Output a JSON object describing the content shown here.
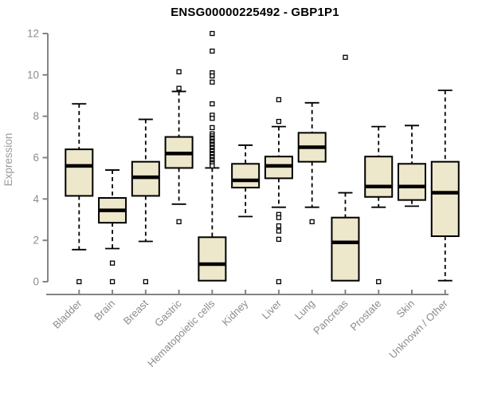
{
  "chart_data": {
    "type": "boxplot",
    "title": "ENSG00000225492 - GBP1P1",
    "ylabel": "Expression",
    "xlabel": "",
    "ylim": [
      0,
      12
    ],
    "yticks": [
      0,
      2,
      4,
      6,
      8,
      10,
      12
    ],
    "grid": false,
    "legend": "none",
    "box_fill": "#EDE7CB",
    "box_stroke": "#000000",
    "axis_color": "#848484",
    "label_color": "#8c8c8c",
    "title_color": "#000000",
    "categories": [
      "Bladder",
      "Brain",
      "Breast",
      "Gastric",
      "Hematopoietic cells",
      "Kidney",
      "Liver",
      "Lung",
      "Pancreas",
      "Prostate",
      "Skin",
      "Unknown / Other"
    ],
    "series": [
      {
        "category": "Bladder",
        "whisker_low": 1.55,
        "q1": 4.15,
        "median": 5.6,
        "q3": 6.4,
        "whisker_high": 8.6,
        "outliers": [
          0.0
        ]
      },
      {
        "category": "Brain",
        "whisker_low": 1.6,
        "q1": 2.85,
        "median": 3.45,
        "q3": 4.05,
        "whisker_high": 5.4,
        "outliers": [
          0.9,
          0.0
        ]
      },
      {
        "category": "Breast",
        "whisker_low": 1.95,
        "q1": 4.15,
        "median": 5.05,
        "q3": 5.8,
        "whisker_high": 7.85,
        "outliers": [
          0.0
        ]
      },
      {
        "category": "Gastric",
        "whisker_low": 3.75,
        "q1": 5.5,
        "median": 6.2,
        "q3": 7.0,
        "whisker_high": 9.2,
        "outliers": [
          10.15,
          9.35,
          2.9
        ]
      },
      {
        "category": "Hematopoietic cells",
        "whisker_low": 0.05,
        "q1": 0.05,
        "median": 0.85,
        "q3": 2.15,
        "whisker_high": 5.5,
        "outliers": [
          12.0,
          11.15,
          10.1,
          9.95,
          9.65,
          8.6,
          8.05,
          7.9,
          7.45,
          7.15,
          7.05,
          6.95,
          6.9,
          6.8,
          6.75,
          6.65,
          6.6,
          6.5,
          6.45,
          6.35,
          6.3,
          6.2,
          6.15,
          6.05,
          6.0,
          5.9,
          5.85,
          5.75,
          5.7,
          5.6
        ]
      },
      {
        "category": "Kidney",
        "whisker_low": 3.15,
        "q1": 4.55,
        "median": 4.9,
        "q3": 5.7,
        "whisker_high": 6.6,
        "outliers": []
      },
      {
        "category": "Liver",
        "whisker_low": 3.6,
        "q1": 5.0,
        "median": 5.6,
        "q3": 6.05,
        "whisker_high": 7.5,
        "outliers": [
          8.8,
          7.75,
          3.25,
          3.1,
          2.7,
          2.45,
          2.05,
          0.0
        ]
      },
      {
        "category": "Lung",
        "whisker_low": 3.6,
        "q1": 5.8,
        "median": 6.5,
        "q3": 7.2,
        "whisker_high": 8.65,
        "outliers": [
          2.9
        ]
      },
      {
        "category": "Pancreas",
        "whisker_low": 0.05,
        "q1": 0.05,
        "median": 1.9,
        "q3": 3.1,
        "whisker_high": 4.3,
        "outliers": [
          10.85
        ]
      },
      {
        "category": "Prostate",
        "whisker_low": 3.6,
        "q1": 4.1,
        "median": 4.6,
        "q3": 6.05,
        "whisker_high": 7.5,
        "outliers": [
          0.0
        ]
      },
      {
        "category": "Skin",
        "whisker_low": 3.65,
        "q1": 3.95,
        "median": 4.6,
        "q3": 5.7,
        "whisker_high": 7.55,
        "outliers": []
      },
      {
        "category": "Unknown / Other",
        "whisker_low": 0.05,
        "q1": 2.2,
        "median": 4.3,
        "q3": 5.8,
        "whisker_high": 9.25,
        "outliers": []
      }
    ]
  }
}
